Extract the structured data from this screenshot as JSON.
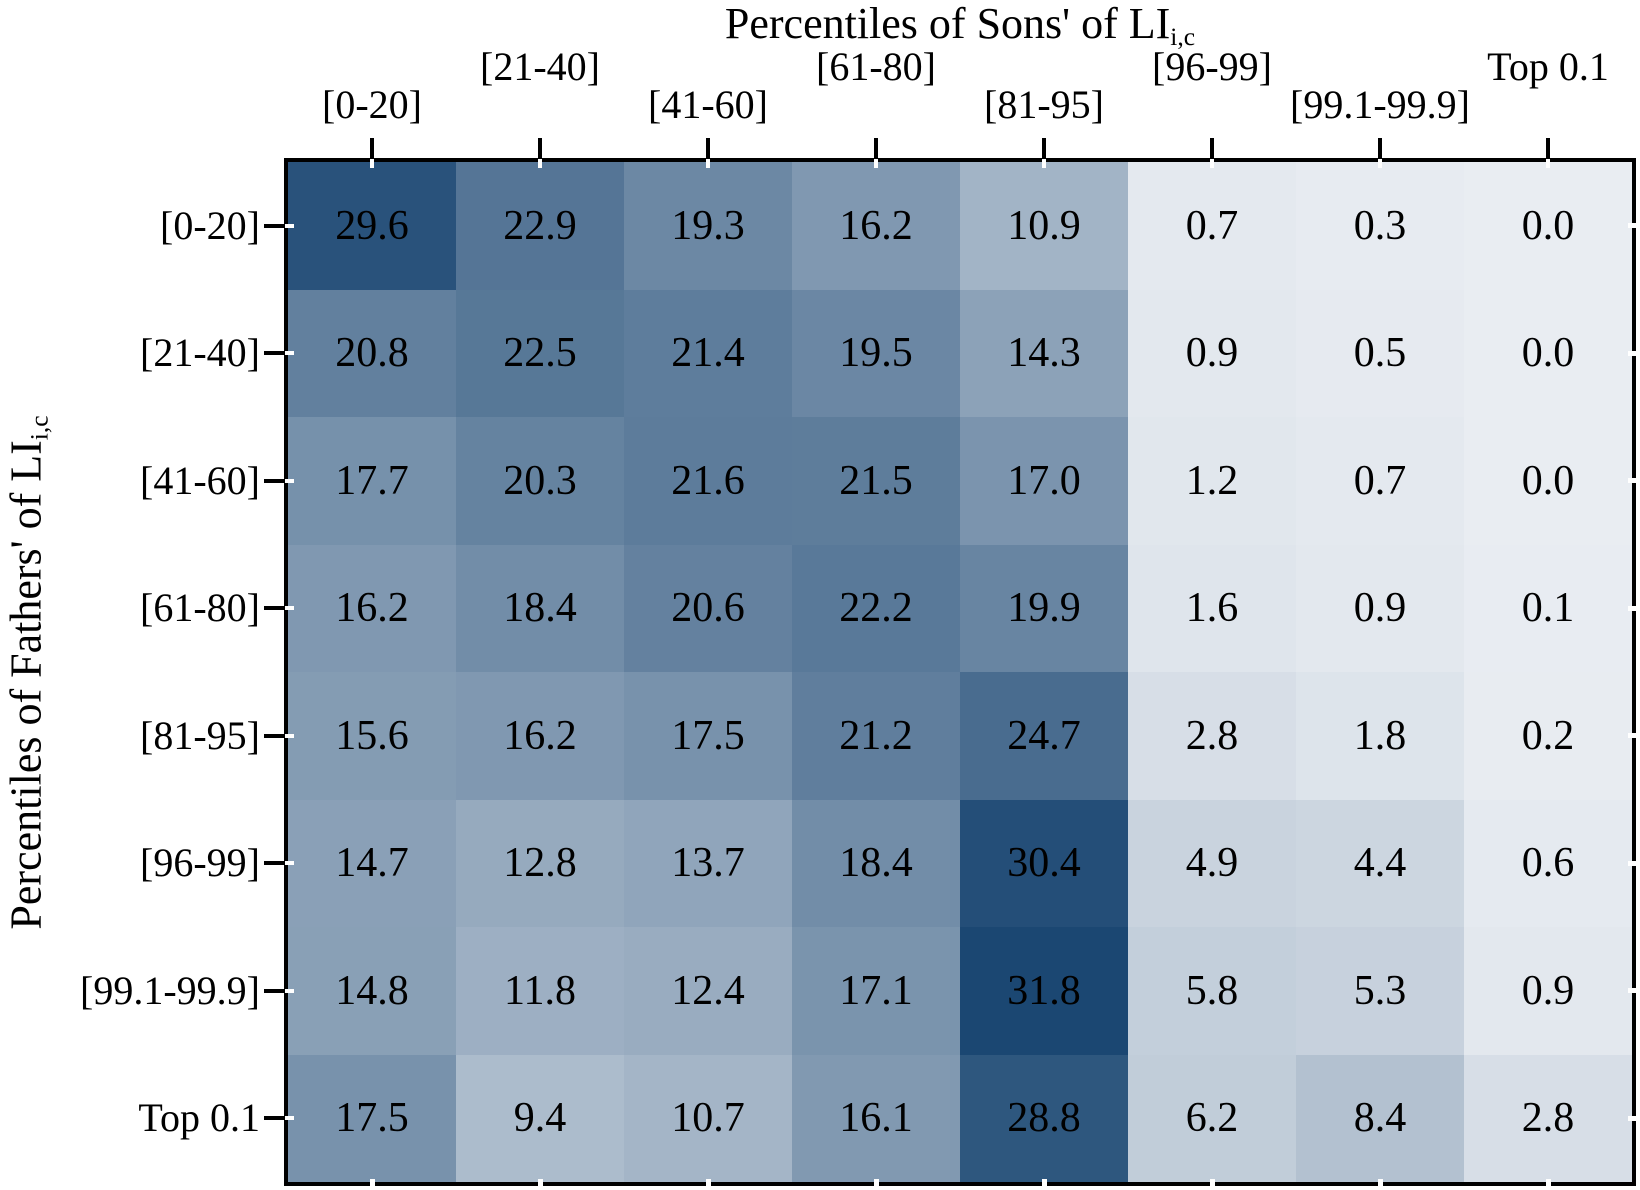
{
  "chart_data": {
    "type": "heatmap",
    "title": {
      "text": "Percentiles of Sons' of LI",
      "subscript": "i,c"
    },
    "ylabel": {
      "text": "Percentiles of Fathers' of LI",
      "subscript": "i,c"
    },
    "x_categories": [
      "[0-20]",
      "[21-40]",
      "[41-60]",
      "[61-80]",
      "[81-95]",
      "[96-99]",
      "[99.1-99.9]",
      "Top 0.1"
    ],
    "y_categories": [
      "[0-20]",
      "[21-40]",
      "[41-60]",
      "[61-80]",
      "[81-95]",
      "[96-99]",
      "[99.1-99.9]",
      "Top 0.1"
    ],
    "matrix": [
      [
        29.6,
        22.9,
        19.3,
        16.2,
        10.9,
        0.7,
        0.3,
        0.0
      ],
      [
        20.8,
        22.5,
        21.4,
        19.5,
        14.3,
        0.9,
        0.5,
        0.0
      ],
      [
        17.7,
        20.3,
        21.6,
        21.5,
        17.0,
        1.2,
        0.7,
        0.0
      ],
      [
        16.2,
        18.4,
        20.6,
        22.2,
        19.9,
        1.6,
        0.9,
        0.1
      ],
      [
        15.6,
        16.2,
        17.5,
        21.2,
        24.7,
        2.8,
        1.8,
        0.2
      ],
      [
        14.7,
        12.8,
        13.7,
        18.4,
        30.4,
        4.9,
        4.4,
        0.6
      ],
      [
        14.8,
        11.8,
        12.4,
        17.1,
        31.8,
        5.8,
        5.3,
        0.9
      ],
      [
        17.5,
        9.4,
        10.7,
        16.1,
        28.8,
        6.2,
        8.4,
        2.8
      ]
    ],
    "value_decimals": 1,
    "colormap": {
      "type": "linear",
      "vmin": 0,
      "vmax": 31.8,
      "min_color": "#e9edf2",
      "max_color": "#1b4772"
    },
    "cell_text_color": "#000000",
    "axis_color": "#000000",
    "background": "#ffffff",
    "legend": "none",
    "grid": "off"
  }
}
